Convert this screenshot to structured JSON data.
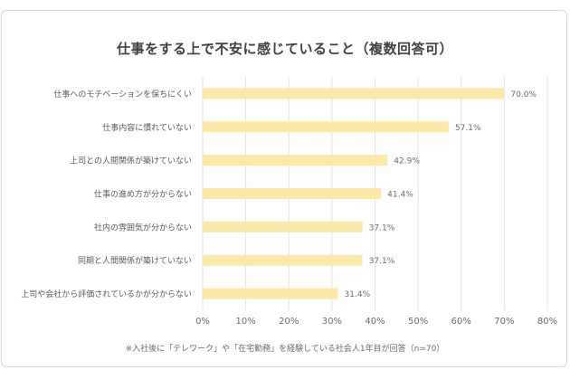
{
  "chart_data": {
    "type": "bar",
    "orientation": "horizontal",
    "title": "仕事をする上で不安に感じていること（複数回答可）",
    "categories": [
      "仕事へのモチベーションを保ちにくい",
      "仕事内容に慣れていない",
      "上司との人間関係が築けていない",
      "仕事の進め方が分からない",
      "社内の雰囲気が分からない",
      "同期と人間関係が築けていない",
      "上司や会社から評価されているかが分からない"
    ],
    "values": [
      70.0,
      57.1,
      42.9,
      41.4,
      37.1,
      37.1,
      31.4
    ],
    "value_labels": [
      "70.0%",
      "57.1%",
      "42.9%",
      "41.4%",
      "37.1%",
      "37.1%",
      "31.4%"
    ],
    "xlim": [
      0,
      80
    ],
    "x_ticks": [
      "0%",
      "10%",
      "20%",
      "30%",
      "40%",
      "50%",
      "60%",
      "70%",
      "80%"
    ],
    "grid": true,
    "bar_color": "#fce9a6",
    "note": "※入社後に「テレワーク」や「在宅勤務」を経験している社会人1年目が回答（n=70）"
  }
}
